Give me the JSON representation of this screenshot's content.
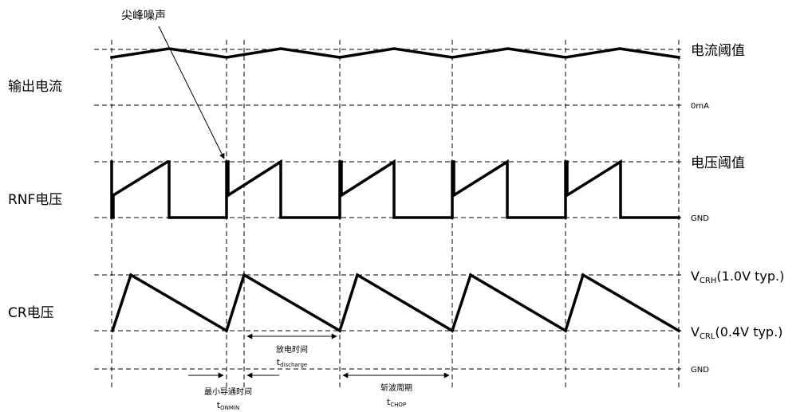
{
  "signals": {
    "output_current": "输出电流",
    "rnf_voltage": "RNF电压",
    "cr_voltage": "CR电压"
  },
  "levels": {
    "current_threshold": "电流阈值",
    "zero_ma": "0mA",
    "voltage_threshold": "电压阈值",
    "gnd_rnf": "GND",
    "vcrh_main": "V",
    "vcrh_sub": "CRH",
    "vcrh_tail": "(1.0V typ.)",
    "vcrl_main": "V",
    "vcrl_sub": "CRL",
    "vcrl_tail": "(0.4V typ.)",
    "gnd_bottom": "GND"
  },
  "annotations": {
    "spike_noise": "尖峰噪声",
    "discharge_cn": "放电时间",
    "discharge_t": "t",
    "discharge_sub": "discharge",
    "min_on_cn": "最小导通时间",
    "min_on_t": "t",
    "min_on_sub": "ONMIN",
    "chop_cn": "斩波周期",
    "chop_t": "t",
    "chop_sub": "CHOP"
  }
}
